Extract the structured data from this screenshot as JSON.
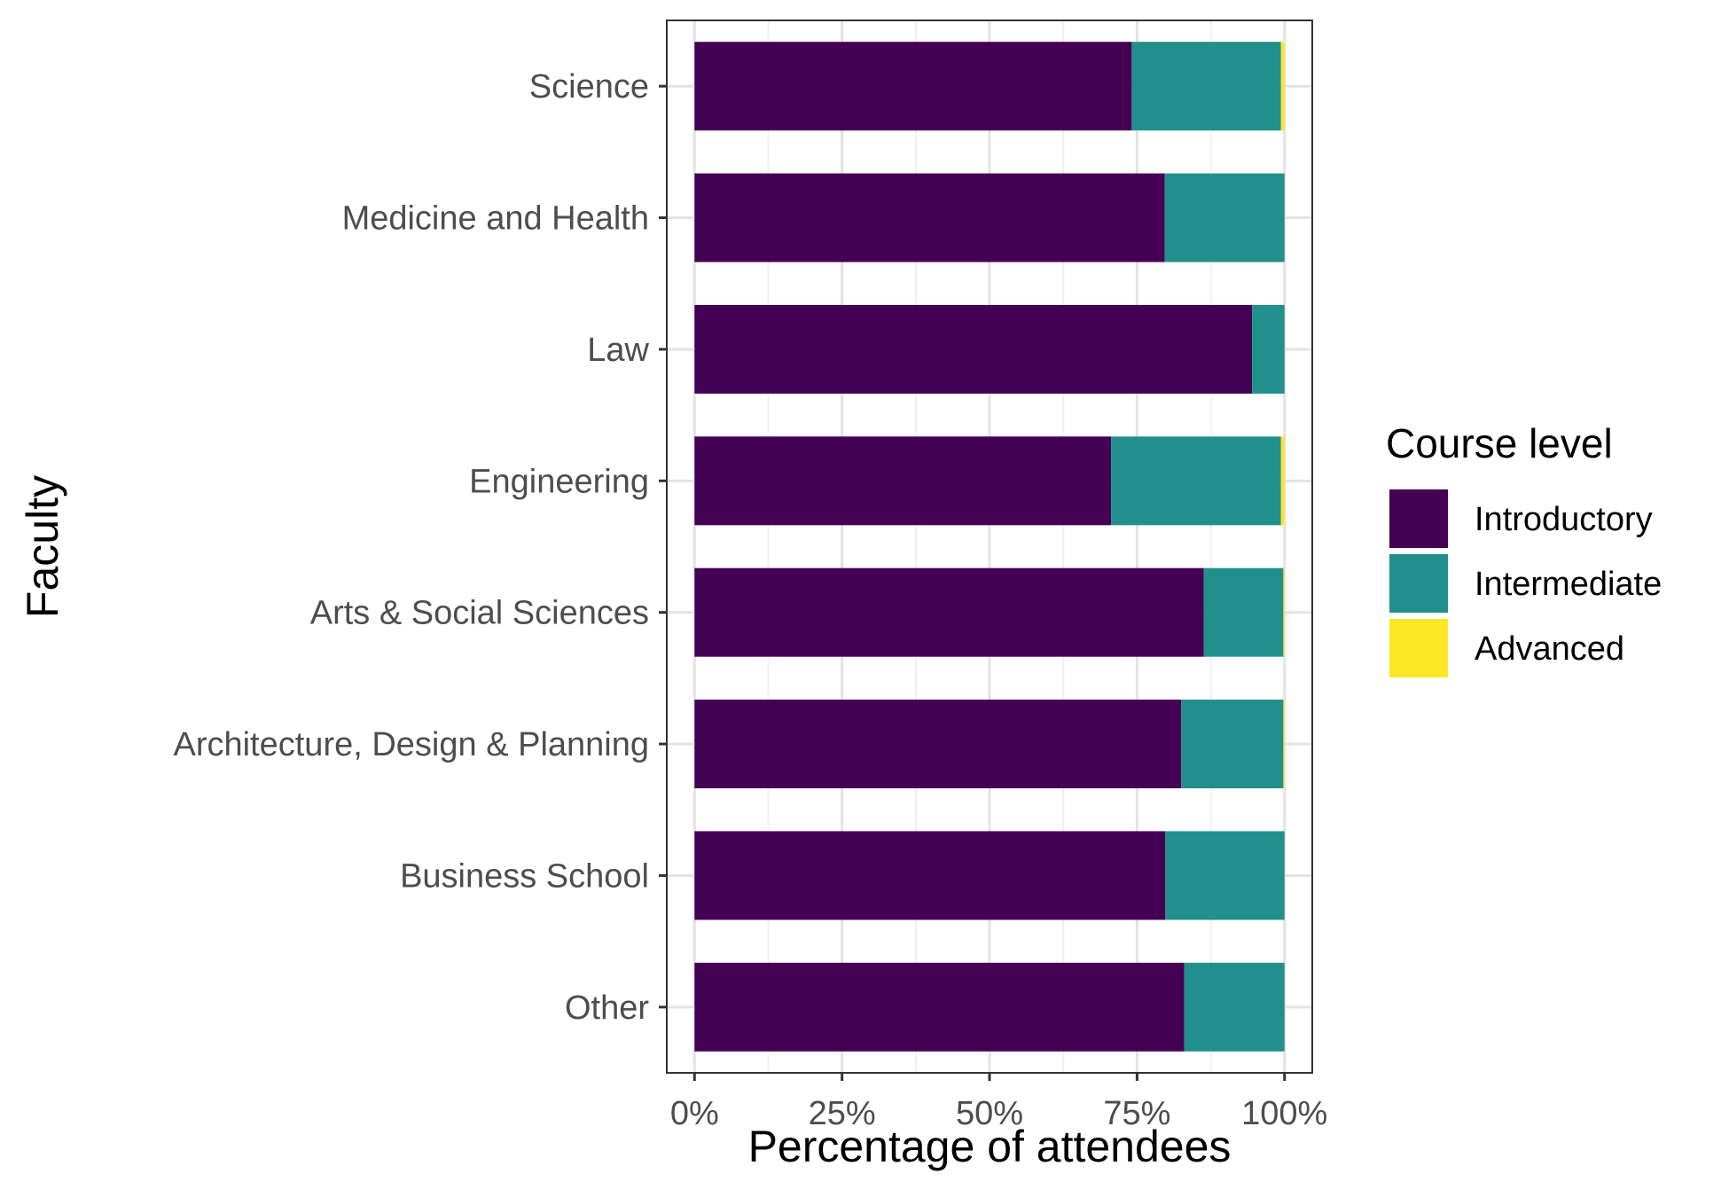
{
  "chart_data": {
    "type": "bar",
    "orientation": "horizontal",
    "stacked": true,
    "categories": [
      "Science",
      "Medicine and Health",
      "Law",
      "Engineering",
      "Arts & Social Sciences",
      "Architecture, Design & Planning",
      "Business School",
      "Other"
    ],
    "series": [
      {
        "name": "Introductory",
        "color": "#440154",
        "values": [
          74.1,
          79.7,
          94.5,
          70.6,
          86.3,
          82.5,
          79.8,
          83.0
        ]
      },
      {
        "name": "Intermediate",
        "color": "#21908c",
        "values": [
          25.3,
          20.3,
          5.5,
          28.8,
          13.5,
          17.3,
          20.2,
          17.0
        ]
      },
      {
        "name": "Advanced",
        "color": "#fde725",
        "values": [
          0.6,
          0.0,
          0.0,
          0.6,
          0.2,
          0.2,
          0.0,
          0.0
        ]
      }
    ],
    "xlim": [
      -4.7,
      104.7
    ],
    "xticks": [
      0,
      25,
      50,
      75,
      100
    ],
    "xtick_labels": [
      "0%",
      "25%",
      "50%",
      "75%",
      "100%"
    ],
    "xlabel": "Percentage of attendees",
    "ylabel": "Faculty",
    "legend_title": "Course level",
    "legend_position": "right",
    "grid": true
  }
}
